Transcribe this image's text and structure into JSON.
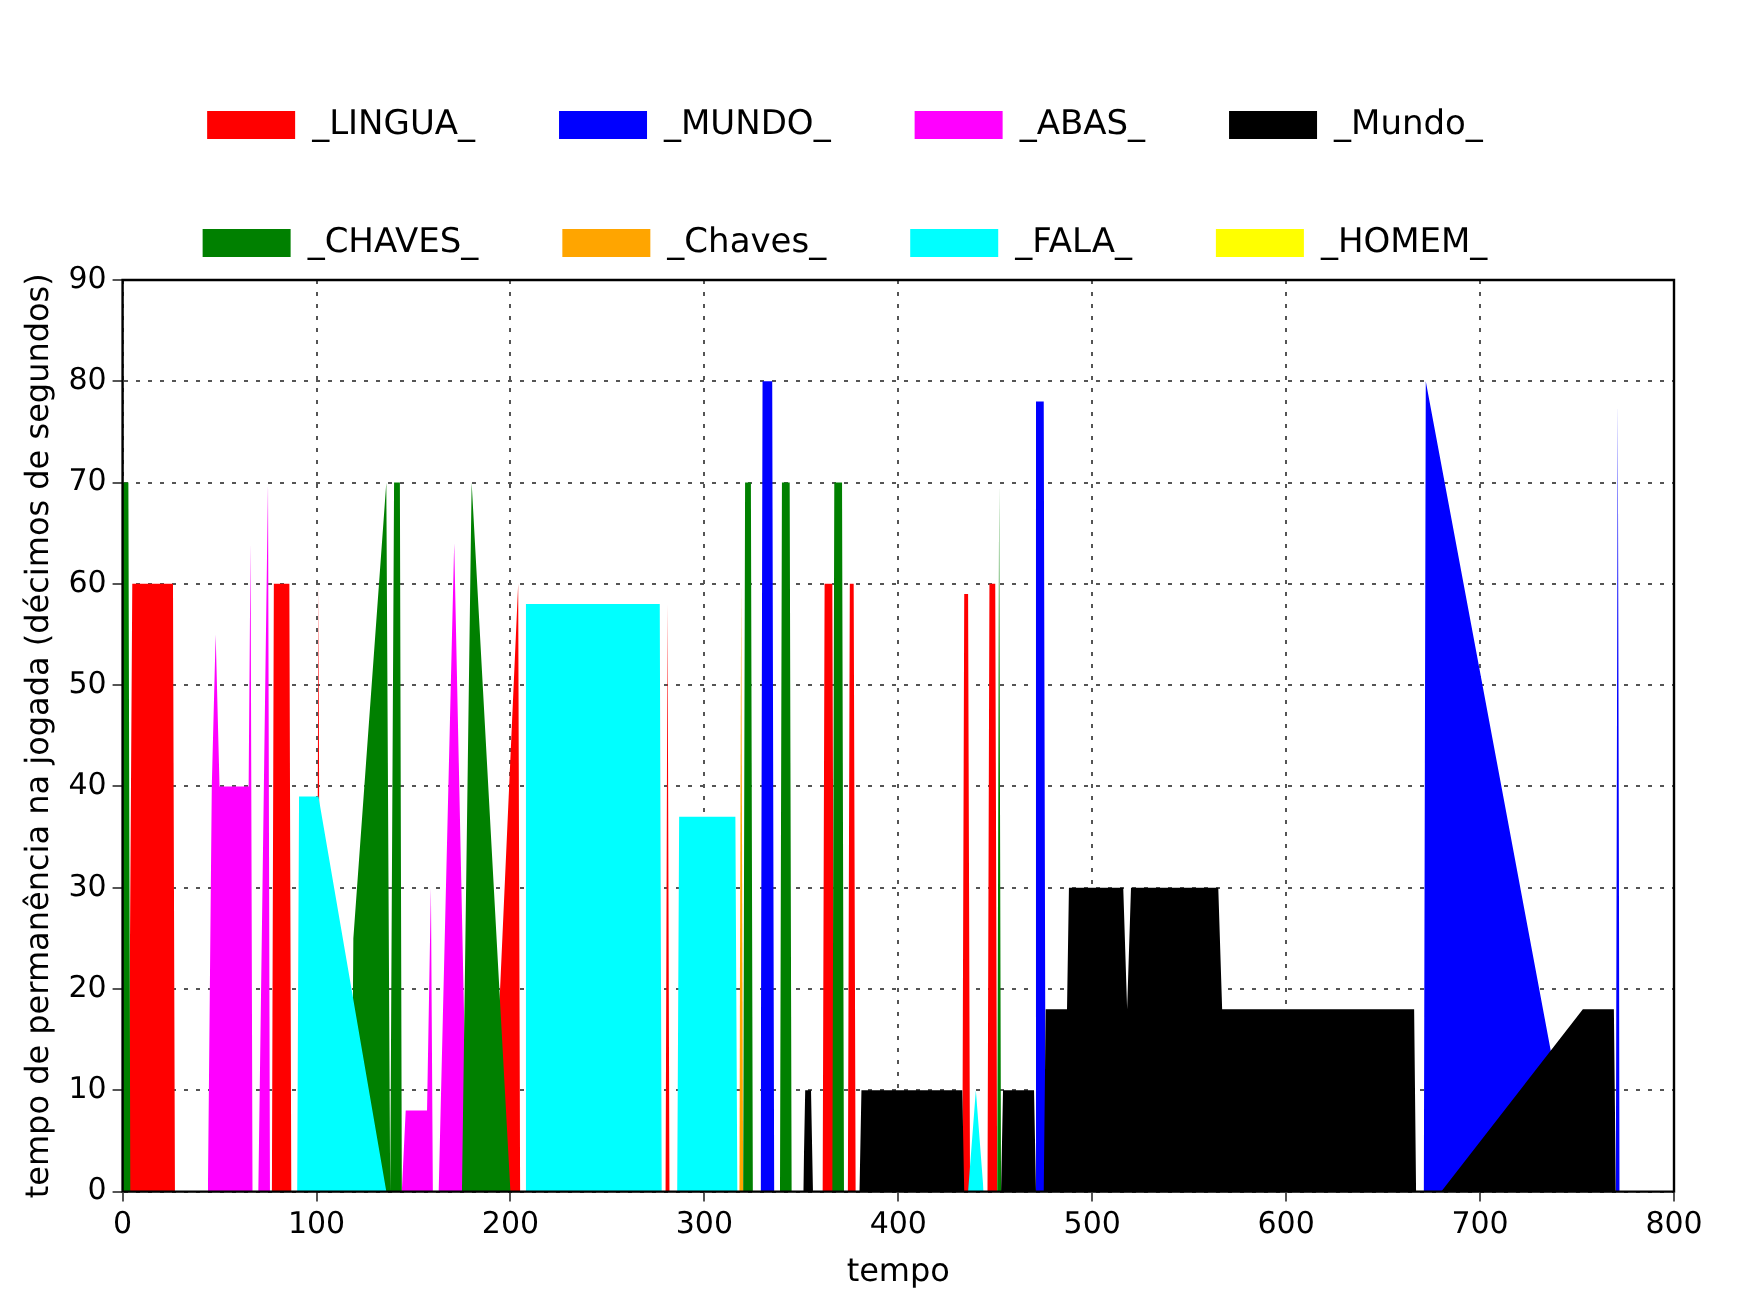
{
  "chart_data": {
    "type": "area",
    "xlabel": "tempo",
    "ylabel": "tempo de permanência na jogada (décimos de segundos)",
    "xlim": [
      0,
      800
    ],
    "xticks": [
      0,
      100,
      200,
      300,
      400,
      500,
      600,
      700,
      800
    ],
    "ylim": [
      0,
      90
    ],
    "yticks": [
      0,
      10,
      20,
      30,
      40,
      50,
      60,
      70,
      80,
      90
    ],
    "grid": true,
    "legend": "top",
    "series": [
      {
        "name": "_LINGUA_",
        "color": "#ff0000",
        "x": [
          3,
          5,
          26,
          27,
          77,
          78,
          86,
          87,
          100,
          101,
          102,
          190,
          204,
          205,
          280,
          281,
          282,
          361,
          362,
          366,
          367,
          374,
          375,
          377,
          378,
          433,
          434,
          436,
          437,
          446,
          447,
          450,
          451
        ],
        "values": [
          0,
          60,
          60,
          0,
          0,
          60,
          60,
          0,
          0,
          60,
          0,
          0,
          60,
          0,
          0,
          58,
          0,
          0,
          60,
          60,
          0,
          0,
          60,
          60,
          0,
          0,
          59,
          59,
          0,
          0,
          60,
          60,
          0
        ]
      },
      {
        "name": "_MUNDO_",
        "color": "#0000ff",
        "x": [
          329,
          330,
          335,
          336,
          470,
          471,
          475,
          476,
          671,
          672,
          750,
          770,
          771,
          772
        ],
        "values": [
          0,
          80,
          80,
          0,
          0,
          78,
          78,
          0,
          0,
          80,
          0,
          0,
          78,
          0
        ]
      },
      {
        "name": "_ABAS_",
        "color": "#ff00ff",
        "x": [
          44,
          46,
          48,
          50,
          65,
          66,
          67,
          70,
          75,
          76,
          144,
          146,
          157,
          159,
          160,
          163,
          171,
          178
        ],
        "values": [
          0,
          40,
          55,
          40,
          40,
          64,
          0,
          0,
          70,
          0,
          0,
          8,
          8,
          30,
          0,
          0,
          64,
          0
        ]
      },
      {
        "name": "_Mundo_",
        "color": "#000000",
        "x": [
          351,
          352,
          355,
          356,
          380,
          381,
          433,
          434,
          453,
          454,
          470,
          471,
          475,
          476,
          487,
          488,
          516,
          518,
          520,
          565,
          567,
          666,
          667,
          680,
          753,
          769,
          770
        ],
        "values": [
          0,
          10,
          10,
          0,
          0,
          10,
          10,
          0,
          0,
          10,
          10,
          0,
          0,
          18,
          18,
          30,
          30,
          18,
          30,
          30,
          18,
          18,
          0,
          0,
          18,
          18,
          0
        ]
      },
      {
        "name": "_CHAVES_",
        "color": "#008000",
        "x": [
          0,
          3,
          4,
          118,
          119,
          136,
          138,
          140,
          143,
          144,
          175,
          180,
          200,
          320,
          321,
          324,
          325,
          339,
          340,
          344,
          345,
          366,
          367,
          371,
          372,
          451,
          452,
          453
        ],
        "values": [
          70,
          70,
          0,
          0,
          25,
          70,
          0,
          70,
          70,
          0,
          0,
          70,
          0,
          0,
          70,
          70,
          0,
          0,
          70,
          70,
          0,
          0,
          70,
          70,
          0,
          0,
          70,
          0
        ]
      },
      {
        "name": "_Chaves_",
        "color": "#ffa500",
        "x": [
          318,
          319,
          320
        ],
        "values": [
          0,
          60,
          0
        ]
      },
      {
        "name": "_FALA_",
        "color": "#00ffff",
        "x": [
          90,
          91,
          101,
          136,
          207,
          208,
          277,
          278,
          286,
          287,
          316,
          317,
          436,
          440,
          444
        ],
        "values": [
          0,
          39,
          39,
          0,
          0,
          58,
          58,
          0,
          0,
          37,
          37,
          0,
          0,
          10,
          0
        ]
      },
      {
        "name": "_HOMEM_",
        "color": "#ffff00"
      }
    ]
  }
}
